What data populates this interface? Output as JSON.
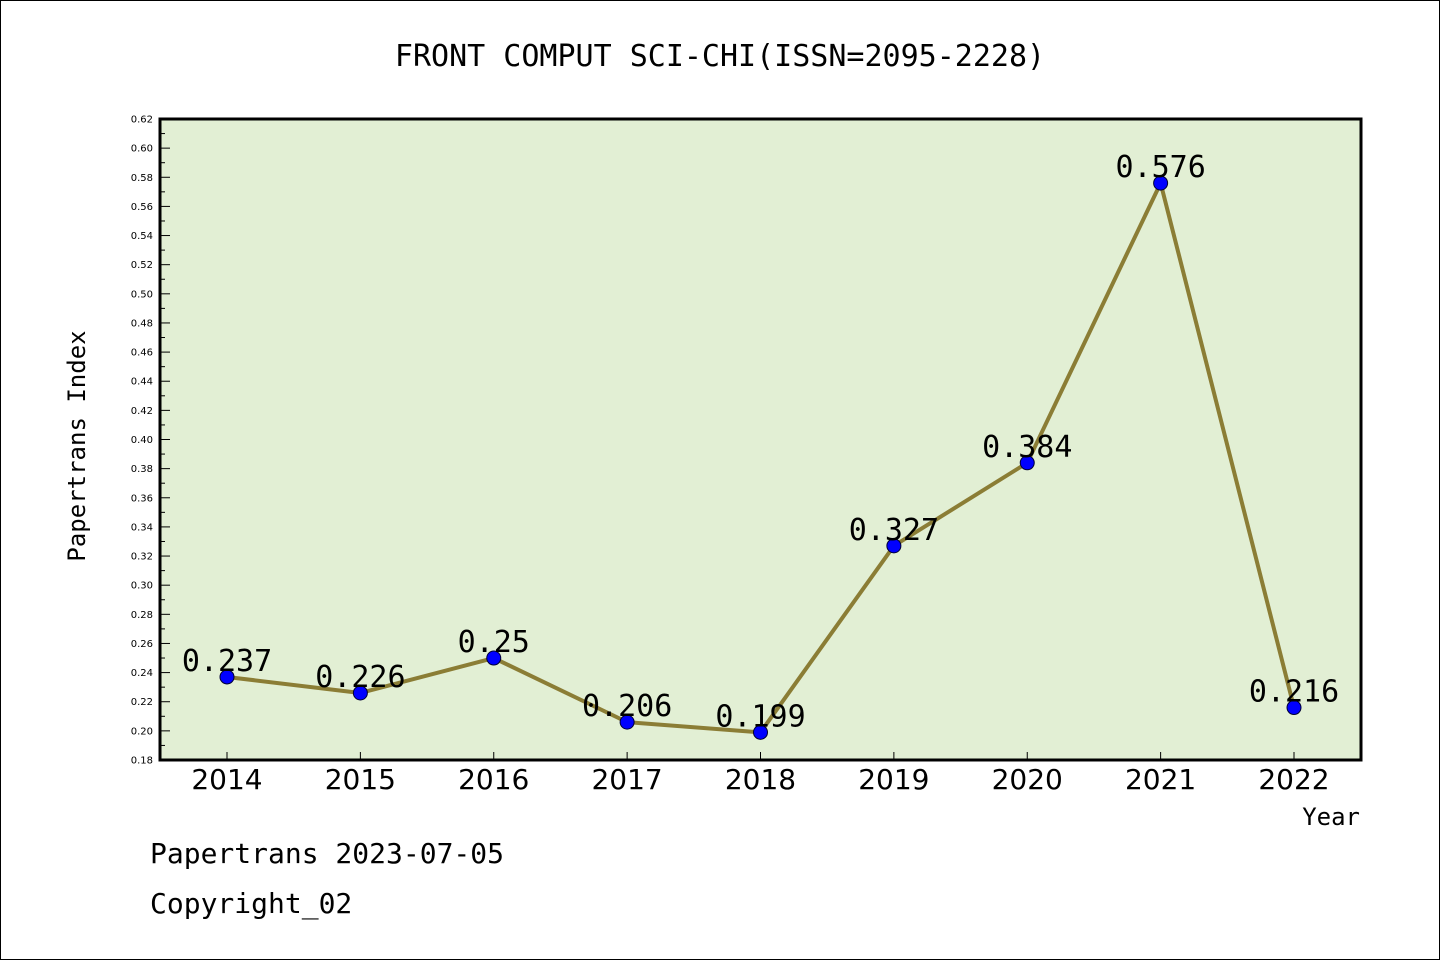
{
  "chart_data": {
    "type": "line",
    "title": "FRONT COMPUT SCI-CHI(ISSN=2095-2228)",
    "xlabel": "Year",
    "ylabel": "Papertrans Index",
    "categories": [
      "2014",
      "2015",
      "2016",
      "2017",
      "2018",
      "2019",
      "2020",
      "2021",
      "2022"
    ],
    "series": [
      {
        "values": [
          0.237,
          0.226,
          0.25,
          0.206,
          0.199,
          0.327,
          0.384,
          0.576,
          0.216
        ],
        "labels": [
          "0.237",
          "0.226",
          "0.25",
          "0.206",
          "0.199",
          "0.327",
          "0.384",
          "0.576",
          "0.216"
        ]
      }
    ],
    "ylim": [
      0.18,
      0.62
    ],
    "yticks": [
      "0.18",
      "0.20",
      "0.22",
      "0.24",
      "0.26",
      "0.28",
      "0.30",
      "0.32",
      "0.34",
      "0.36",
      "0.38",
      "0.40",
      "0.42",
      "0.44",
      "0.46",
      "0.48",
      "0.50",
      "0.52",
      "0.54",
      "0.56",
      "0.58",
      "0.60",
      "0.62"
    ],
    "grid": false,
    "colors": {
      "plot_background": "#e2efd4",
      "line": "#8b7d35",
      "marker": "#0000ff"
    }
  },
  "footer": {
    "line1": "Papertrans 2023-07-05",
    "line2": "Copyright_02"
  }
}
